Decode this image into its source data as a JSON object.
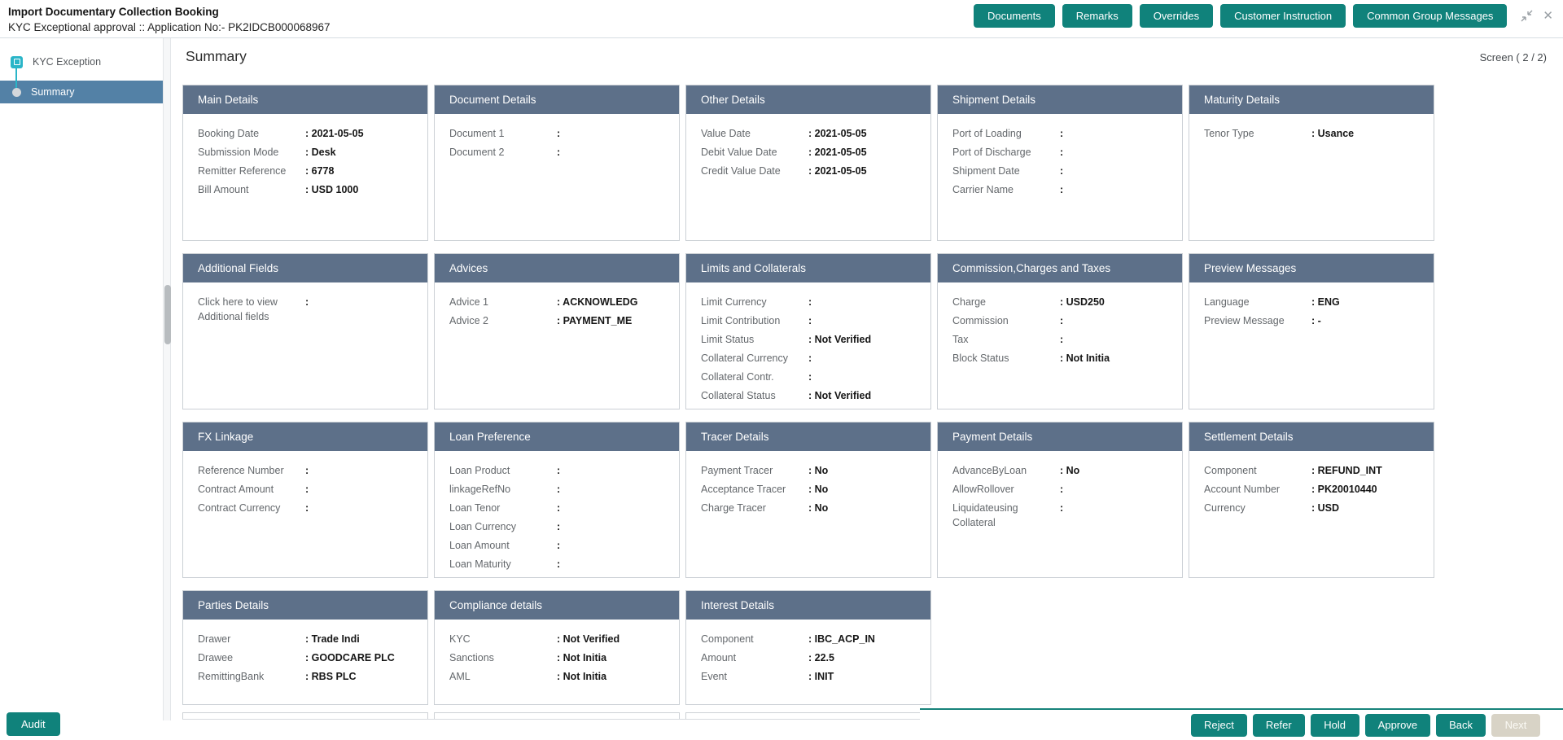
{
  "colors": {
    "accent_teal": "#10827b",
    "card_header_slate": "#5d7089",
    "selected_step_blue": "#5381a6",
    "step_icon_cyan": "#2ab5c8",
    "disabled_button": "#d8d3c6"
  },
  "header": {
    "title": "Import Documentary Collection Booking",
    "subtitle": "KYC Exceptional approval ::  Application No:- PK2IDCB000068967",
    "buttons": [
      "Documents",
      "Remarks",
      "Overrides",
      "Customer Instruction",
      "Common Group Messages"
    ],
    "window_icons": [
      "collapse-icon",
      "close-icon"
    ]
  },
  "sidebar": {
    "steps": [
      {
        "label": "KYC Exception",
        "selected": false
      },
      {
        "label": "Summary",
        "selected": true
      }
    ]
  },
  "main": {
    "heading": "Summary",
    "screen_indicator": "Screen ( 2 / 2)",
    "rows": [
      [
        {
          "title": "Main Details",
          "fields": [
            {
              "label": "Booking Date",
              "value": "2021-05-05"
            },
            {
              "label": "Submission Mode",
              "value": "Desk"
            },
            {
              "label": "Remitter Reference",
              "value": "6778"
            },
            {
              "label": "Bill Amount",
              "value": "USD 1000"
            }
          ]
        },
        {
          "title": "Document Details",
          "fields": [
            {
              "label": "Document 1",
              "value": ""
            },
            {
              "label": "Document 2",
              "value": ""
            }
          ]
        },
        {
          "title": "Other Details",
          "fields": [
            {
              "label": "Value Date",
              "value": "2021-05-05"
            },
            {
              "label": "Debit Value Date",
              "value": "2021-05-05"
            },
            {
              "label": "Credit Value Date",
              "value": "2021-05-05"
            }
          ]
        },
        {
          "title": "Shipment Details",
          "fields": [
            {
              "label": "Port of Loading",
              "value": ""
            },
            {
              "label": "Port of Discharge",
              "value": ""
            },
            {
              "label": "Shipment Date",
              "value": ""
            },
            {
              "label": "Carrier Name",
              "value": ""
            }
          ]
        },
        {
          "title": "Maturity Details",
          "fields": [
            {
              "label": "Tenor Type",
              "value": "Usance"
            }
          ]
        }
      ],
      [
        {
          "title": "Additional Fields",
          "fields": [
            {
              "label": "Click here to view Additional fields",
              "value": "",
              "interactable": true
            }
          ]
        },
        {
          "title": "Advices",
          "fields": [
            {
              "label": "Advice 1",
              "value": "ACKNOWLEDG"
            },
            {
              "label": "Advice 2",
              "value": "PAYMENT_ME"
            }
          ]
        },
        {
          "title": "Limits and Collaterals",
          "fields": [
            {
              "label": "Limit Currency",
              "value": ""
            },
            {
              "label": "Limit Contribution",
              "value": ""
            },
            {
              "label": "Limit Status",
              "value": "Not Verified"
            },
            {
              "label": "Collateral Currency",
              "value": ""
            },
            {
              "label": "Collateral Contr.",
              "value": ""
            },
            {
              "label": "Collateral Status",
              "value": "Not Verified"
            }
          ]
        },
        {
          "title": "Commission,Charges and Taxes",
          "fields": [
            {
              "label": "Charge",
              "value": "USD250"
            },
            {
              "label": "Commission",
              "value": ""
            },
            {
              "label": "Tax",
              "value": ""
            },
            {
              "label": "Block Status",
              "value": "Not Initia"
            }
          ]
        },
        {
          "title": "Preview Messages",
          "fields": [
            {
              "label": "Language",
              "value": "ENG"
            },
            {
              "label": "Preview Message",
              "value": "-"
            }
          ]
        }
      ],
      [
        {
          "title": "FX Linkage",
          "fields": [
            {
              "label": "Reference Number",
              "value": ""
            },
            {
              "label": "Contract Amount",
              "value": ""
            },
            {
              "label": "Contract Currency",
              "value": ""
            }
          ]
        },
        {
          "title": "Loan Preference",
          "fields": [
            {
              "label": "Loan Product",
              "value": ""
            },
            {
              "label": "linkageRefNo",
              "value": ""
            },
            {
              "label": "Loan Tenor",
              "value": ""
            },
            {
              "label": "Loan Currency",
              "value": ""
            },
            {
              "label": "Loan Amount",
              "value": ""
            },
            {
              "label": "Loan Maturity",
              "value": ""
            }
          ]
        },
        {
          "title": "Tracer Details",
          "fields": [
            {
              "label": "Payment Tracer",
              "value": "No"
            },
            {
              "label": "Acceptance Tracer",
              "value": "No"
            },
            {
              "label": "Charge Tracer",
              "value": "No"
            }
          ]
        },
        {
          "title": "Payment Details",
          "fields": [
            {
              "label": "AdvanceByLoan",
              "value": "No"
            },
            {
              "label": "AllowRollover",
              "value": ""
            },
            {
              "label": "Liquidateusing Collateral",
              "value": ""
            }
          ]
        },
        {
          "title": "Settlement Details",
          "fields": [
            {
              "label": "Component",
              "value": "REFUND_INT"
            },
            {
              "label": "Account Number",
              "value": "PK20010440"
            },
            {
              "label": "Currency",
              "value": "USD"
            }
          ]
        }
      ],
      [
        {
          "title": "Parties Details",
          "fields": [
            {
              "label": "Drawer",
              "value": "Trade Indi"
            },
            {
              "label": "Drawee",
              "value": "GOODCARE PLC"
            },
            {
              "label": "RemittingBank",
              "value": "RBS PLC"
            }
          ]
        },
        {
          "title": "Compliance details",
          "fields": [
            {
              "label": "KYC",
              "value": "Not Verified"
            },
            {
              "label": "Sanctions",
              "value": "Not Initia"
            },
            {
              "label": "AML",
              "value": "Not Initia"
            }
          ]
        },
        {
          "title": "Interest Details",
          "fields": [
            {
              "label": "Component",
              "value": "IBC_ACP_IN"
            },
            {
              "label": "Amount",
              "value": "22.5"
            },
            {
              "label": "Event",
              "value": "INIT"
            }
          ]
        }
      ]
    ]
  },
  "footer": {
    "audit": "Audit",
    "actions": [
      {
        "label": "Reject",
        "enabled": true
      },
      {
        "label": "Refer",
        "enabled": true
      },
      {
        "label": "Hold",
        "enabled": true
      },
      {
        "label": "Approve",
        "enabled": true
      },
      {
        "label": "Back",
        "enabled": true
      },
      {
        "label": "Next",
        "enabled": false
      }
    ]
  }
}
